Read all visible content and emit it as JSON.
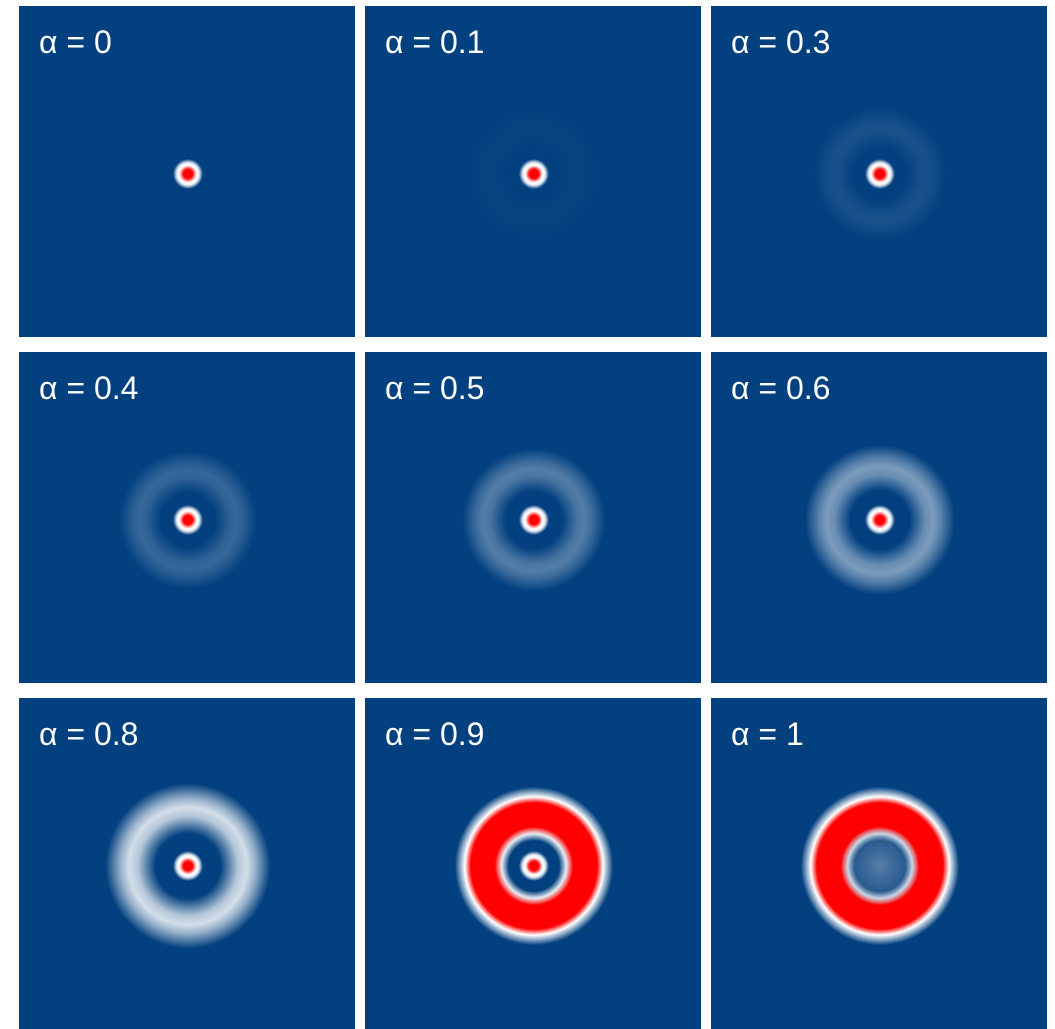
{
  "background_color": "#ffffff",
  "panel_color": "#02407f",
  "palette": {
    "blue": "#02407f",
    "white": "#ffffff",
    "red": "#ff0000"
  },
  "panels": [
    {
      "label": "α = 0",
      "alpha": 0,
      "intensity": {
        "central_spot": 1.0,
        "ring": 0.0
      }
    },
    {
      "label": "α = 0.1",
      "alpha": 0.1,
      "intensity": {
        "central_spot": 1.0,
        "ring": 0.02
      }
    },
    {
      "label": "α = 0.3",
      "alpha": 0.3,
      "intensity": {
        "central_spot": 1.0,
        "ring": 0.08
      }
    },
    {
      "label": "α = 0.4",
      "alpha": 0.4,
      "intensity": {
        "central_spot": 1.0,
        "ring": 0.18
      }
    },
    {
      "label": "α = 0.5",
      "alpha": 0.5,
      "intensity": {
        "central_spot": 1.0,
        "ring": 0.28
      }
    },
    {
      "label": "α = 0.6",
      "alpha": 0.6,
      "intensity": {
        "central_spot": 1.0,
        "ring": 0.42
      }
    },
    {
      "label": "α = 0.8",
      "alpha": 0.8,
      "intensity": {
        "central_spot": 1.0,
        "ring": 0.72
      }
    },
    {
      "label": "α = 0.9",
      "alpha": 0.9,
      "intensity": {
        "central_spot": 0.85,
        "ring": 1.0
      }
    },
    {
      "label": "α = 1",
      "alpha": 1,
      "intensity": {
        "central_spot": 0.25,
        "ring": 1.0
      }
    }
  ]
}
